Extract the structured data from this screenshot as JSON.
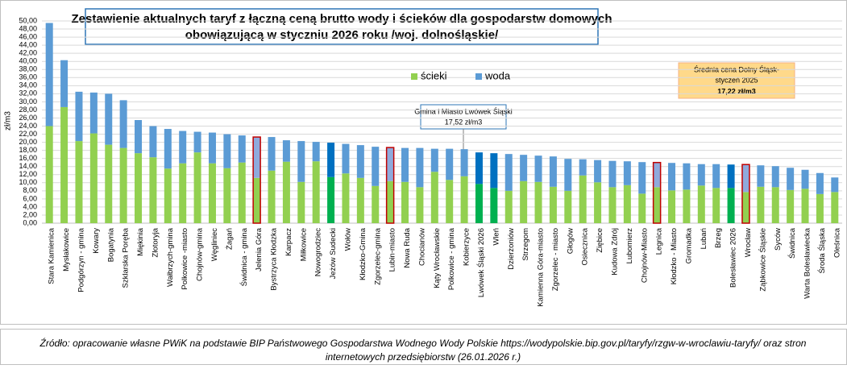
{
  "chart_data": {
    "type": "stacked_bar",
    "title": [
      "Zestawienie aktualnych taryf  z łączną ceną brutto wody i ścieków dla gospodarstw domowych",
      "obowiązującą w styczniu 2026 roku  /woj. dolnośląskie/"
    ],
    "ylabel": "zł/m3",
    "categories": [
      "Stara Kamienica",
      "Mysłakowice",
      "Podgórzyn - gmina",
      "Kowary",
      "Bogatynia",
      "Szklarska Poręba",
      "Miękinia",
      "Złotoryja",
      "Wałbrzych-gmina",
      "Polkowice -miasto",
      "Chojnów-gmina",
      "Węgliniec",
      "Żagań",
      "Świdnica - gmina",
      "Jelenia Góra",
      "Bystrzyca Kłodzka",
      "Karpacz",
      "Miłkowice",
      "Nowogrodziec",
      "Jeżów Sudecki",
      "Wołów",
      "Kłodzko-Gmina",
      "Zgorzelec-gmina",
      "Lubin-miasto",
      "Nowa Ruda",
      "Chocianów",
      "Kąty Wrocławskie",
      "Polkowice - gmina",
      "Kobierzyce",
      "Lwówek Śląski 2026",
      "Wleń",
      "Dzierżoniów",
      "Strzegom",
      "Kamienna Góra-miasto",
      "Zgorzelec - miasto",
      "Głogów",
      "Osiecznica",
      "Ziębice",
      "Kudowa Zdrój",
      "Lubomierz",
      "Chojnów-Miasto",
      "Legnica",
      "Kłodzko - Miasto",
      "Gromadka",
      "Lubań",
      "Brzeg",
      "Bolesławiec 2026",
      "Wrocław",
      "Ząbkowice Śląskie",
      "Syców",
      "Świdnica",
      "Warta Bolesławiecka",
      "Środa Śląska",
      "Oleśnica"
    ],
    "series": [
      {
        "name": "ścieki",
        "color": "#92d050",
        "values": [
          24,
          28.7,
          20.3,
          22.2,
          19.4,
          18.6,
          17.3,
          16.3,
          13.5,
          14.8,
          17.5,
          14.8,
          13.6,
          15,
          11.2,
          13,
          15.2,
          10.2,
          15.3,
          11.4,
          12.3,
          11.2,
          9.2,
          10.4,
          10.2,
          8.9,
          12.7,
          10.7,
          11.6,
          9.7,
          8.7,
          8,
          10.4,
          10.2,
          9,
          8,
          11.8,
          10.1,
          8.9,
          9.4,
          7.3,
          8.9,
          8.1,
          8.3,
          9.3,
          8.7,
          8.7,
          7.7,
          9,
          8.9,
          8.2,
          8.5,
          7.2,
          7.7
        ],
        "colors": [
          "#92d050",
          "#92d050",
          "#92d050",
          "#92d050",
          "#92d050",
          "#92d050",
          "#92d050",
          "#92d050",
          "#92d050",
          "#92d050",
          "#92d050",
          "#92d050",
          "#92d050",
          "#92d050",
          "#92d050",
          "#92d050",
          "#92d050",
          "#92d050",
          "#92d050",
          "#00b050",
          "#92d050",
          "#92d050",
          "#92d050",
          "#92d050",
          "#92d050",
          "#92d050",
          "#92d050",
          "#92d050",
          "#92d050",
          "#00b050",
          "#00b050",
          "#92d050",
          "#92d050",
          "#92d050",
          "#92d050",
          "#92d050",
          "#92d050",
          "#92d050",
          "#92d050",
          "#92d050",
          "#92d050",
          "#92d050",
          "#92d050",
          "#92d050",
          "#92d050",
          "#92d050",
          "#00b050",
          "#92d050",
          "#92d050",
          "#92d050",
          "#92d050",
          "#92d050",
          "#92d050",
          "#92d050"
        ]
      },
      {
        "name": "woda",
        "color": "#5b9bd5",
        "values": [
          25.5,
          11.6,
          12.2,
          10.1,
          12.6,
          11.8,
          8.2,
          7.7,
          9.8,
          8,
          5.1,
          7.6,
          8.4,
          6.7,
          10.1,
          8.3,
          5.3,
          10.1,
          4.8,
          8.5,
          7.3,
          8.1,
          9.7,
          8.3,
          8.4,
          9.7,
          5.7,
          7.7,
          6.7,
          7.8,
          8.6,
          9.1,
          6.5,
          6.5,
          7.5,
          7.9,
          4,
          5.5,
          6.5,
          5.9,
          7.8,
          6.1,
          6.8,
          6.5,
          5.3,
          5.9,
          5.8,
          6.8,
          5.3,
          5.2,
          5.5,
          4.7,
          5.2,
          3.6
        ],
        "colors": [
          "#5b9bd5",
          "#5b9bd5",
          "#5b9bd5",
          "#5b9bd5",
          "#5b9bd5",
          "#5b9bd5",
          "#5b9bd5",
          "#5b9bd5",
          "#5b9bd5",
          "#5b9bd5",
          "#5b9bd5",
          "#5b9bd5",
          "#5b9bd5",
          "#5b9bd5",
          "#8faadc",
          "#5b9bd5",
          "#5b9bd5",
          "#5b9bd5",
          "#5b9bd5",
          "#0070c0",
          "#5b9bd5",
          "#5b9bd5",
          "#5b9bd5",
          "#8faadc",
          "#5b9bd5",
          "#5b9bd5",
          "#5b9bd5",
          "#5b9bd5",
          "#5b9bd5",
          "#0070c0",
          "#0070c0",
          "#5b9bd5",
          "#5b9bd5",
          "#5b9bd5",
          "#5b9bd5",
          "#5b9bd5",
          "#5b9bd5",
          "#5b9bd5",
          "#5b9bd5",
          "#5b9bd5",
          "#5b9bd5",
          "#8faadc",
          "#5b9bd5",
          "#5b9bd5",
          "#5b9bd5",
          "#5b9bd5",
          "#0070c0",
          "#8faadc",
          "#5b9bd5",
          "#5b9bd5",
          "#5b9bd5",
          "#5b9bd5",
          "#5b9bd5",
          "#5b9bd5"
        ]
      }
    ],
    "edgecolors": [
      "none",
      "none",
      "none",
      "none",
      "none",
      "none",
      "none",
      "none",
      "none",
      "none",
      "none",
      "none",
      "none",
      "none",
      "#c00000",
      "none",
      "none",
      "none",
      "none",
      "none",
      "none",
      "none",
      "none",
      "#c00000",
      "none",
      "none",
      "none",
      "none",
      "none",
      "none",
      "none",
      "none",
      "none",
      "none",
      "none",
      "none",
      "none",
      "none",
      "none",
      "none",
      "none",
      "#c00000",
      "none",
      "none",
      "none",
      "none",
      "none",
      "#c00000",
      "none",
      "none",
      "none",
      "none",
      "none",
      "none"
    ],
    "ylim": [
      0,
      50
    ],
    "yticks": [
      {
        "value": 0,
        "label": "0,00"
      },
      {
        "value": 2,
        "label": "2,00"
      },
      {
        "value": 4,
        "label": "4,00"
      },
      {
        "value": 6,
        "label": "6,00"
      },
      {
        "value": 8,
        "label": "8,00"
      },
      {
        "value": 10,
        "label": "10,00"
      },
      {
        "value": 12,
        "label": "12,00"
      },
      {
        "value": 14,
        "label": "14,00"
      },
      {
        "value": 16,
        "label": "16,00"
      },
      {
        "value": 18,
        "label": "18,00"
      },
      {
        "value": 20,
        "label": "20,00"
      },
      {
        "value": 22,
        "label": "22,00"
      },
      {
        "value": 24,
        "label": "24,00"
      },
      {
        "value": 26,
        "label": "26,00"
      },
      {
        "value": 28,
        "label": "28,00"
      },
      {
        "value": 30,
        "label": "30,00"
      },
      {
        "value": 32,
        "label": "32,00"
      },
      {
        "value": 34,
        "label": "34,00"
      },
      {
        "value": 36,
        "label": "36,00"
      },
      {
        "value": 38,
        "label": "38,00"
      },
      {
        "value": 40,
        "label": "40,00"
      },
      {
        "value": 42,
        "label": "42,00"
      },
      {
        "value": 44,
        "label": "44,00"
      },
      {
        "value": 46,
        "label": "46,00"
      },
      {
        "value": 48,
        "label": "48,00"
      },
      {
        "value": 50,
        "label": "50,00"
      }
    ],
    "grid": true,
    "annotations": [
      {
        "text": [
          "Średnia cena Dolny Śląsk-",
          "styczeń 2025",
          "17,22 zł/m3"
        ]
      },
      {
        "text": [
          "Gmina i Miasto Lwówek Śląski",
          "17,52 zł/m3"
        ]
      }
    ],
    "source": [
      "Źródło:  opracowanie własne PWiK na podstawie BIP Państwowego Gospodarstwa Wodnego Wody Polskie https://wodypolskie.bip.gov.pl/taryfy/rzgw-w-wroclawiu-taryfy/ oraz stron",
      "internetowych przedsiębiorstw (26.01.2026 r.)"
    ]
  }
}
